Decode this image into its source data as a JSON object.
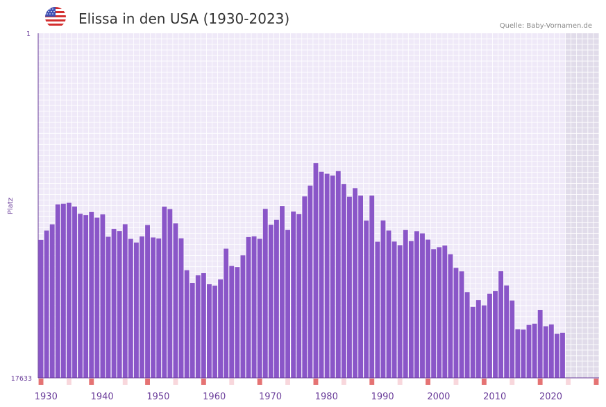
{
  "header": {
    "title": "Elissa in den USA (1930-2023)",
    "source": "Quelle: Baby-Vornamen.de",
    "flag_icon": "us-flag-icon"
  },
  "colors": {
    "bar": "#8a56c8",
    "plot_bg": "#efe9f8",
    "future_bg": "#e1dcea",
    "grid": "#ffffff",
    "axis": "#6a3d9a",
    "marker_strong": "#e57373",
    "marker_light": "#f8d7dc"
  },
  "chart_data": {
    "type": "bar",
    "title": "Elissa in den USA (1930-2023)",
    "ylabel": "Platz",
    "xlabel": "",
    "y_axis_inverted": true,
    "ylim": [
      1,
      17633
    ],
    "xlim": [
      1929,
      2029
    ],
    "future_shade_from_year": 2023,
    "yticks": [
      "1",
      "17633"
    ],
    "xticks": [
      1930,
      1940,
      1950,
      1960,
      1970,
      1980,
      1990,
      2000,
      2010,
      2020
    ],
    "xtick_labels": [
      "1930",
      "1940",
      "1950",
      "1960",
      "1970",
      "1980",
      "1990",
      "2000",
      "2010",
      "2020"
    ],
    "years": [
      1929,
      1930,
      1931,
      1932,
      1933,
      1934,
      1935,
      1936,
      1937,
      1938,
      1939,
      1940,
      1941,
      1942,
      1943,
      1944,
      1945,
      1946,
      1947,
      1948,
      1949,
      1950,
      1951,
      1952,
      1953,
      1954,
      1955,
      1956,
      1957,
      1958,
      1959,
      1960,
      1961,
      1962,
      1963,
      1964,
      1965,
      1966,
      1967,
      1968,
      1969,
      1970,
      1971,
      1972,
      1973,
      1974,
      1975,
      1976,
      1977,
      1978,
      1979,
      1980,
      1981,
      1982,
      1983,
      1984,
      1985,
      1986,
      1987,
      1988,
      1989,
      1990,
      1991,
      1992,
      1993,
      1994,
      1995,
      1996,
      1997,
      1998,
      1999,
      2000,
      2001,
      2002,
      2003,
      2004,
      2005,
      2006,
      2007,
      2008,
      2009,
      2010,
      2011,
      2012,
      2013,
      2014,
      2015,
      2016,
      2017,
      2018,
      2019,
      2020,
      2021,
      2022
    ],
    "ranks": [
      10570,
      10095,
      9776,
      8755,
      8720,
      8676,
      8865,
      9237,
      9300,
      9146,
      9431,
      9269,
      10413,
      10009,
      10117,
      9771,
      10521,
      10707,
      10396,
      9812,
      10448,
      10501,
      8871,
      8994,
      9730,
      10492,
      12124,
      12773,
      12387,
      12273,
      12838,
      12912,
      12596,
      11020,
      11908,
      11963,
      11364,
      10428,
      10392,
      10518,
      8984,
      9796,
      9540,
      8839,
      10066,
      9122,
      9256,
      8348,
      7794,
      6640,
      7087,
      7189,
      7284,
      7054,
      7708,
      8363,
      7925,
      8307,
      9587,
      8306,
      10666,
      9579,
      10094,
      10658,
      10844,
      10068,
      10635,
      10125,
      10237,
      10559,
      11046,
      10945,
      10864,
      11306,
      12004,
      12181,
      13244,
      14007,
      13658,
      13926,
      13330,
      13195,
      12175,
      12903,
      13677,
      15151,
      15164,
      14925,
      14860,
      14157,
      14990,
      14899,
      15376,
      15323
    ],
    "markers_strong_years": [
      1929,
      1938,
      1948,
      1958,
      1968,
      1978,
      1988,
      1998,
      2008,
      2018,
      2028
    ],
    "markers_light_years": [
      1934,
      1944,
      1953,
      1963,
      1973,
      1983,
      1993,
      2003,
      2013,
      2023
    ]
  }
}
